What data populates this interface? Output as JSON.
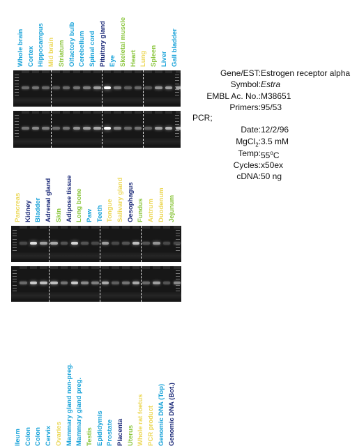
{
  "panels": [
    {
      "labels": [
        {
          "text": "Whole brain",
          "color": "#1aa3d9"
        },
        {
          "text": "Cortex",
          "color": "#1aa3d9"
        },
        {
          "text": "Hippocampus",
          "color": "#1aa3d9"
        },
        {
          "text": "Mid brain",
          "color": "#ecd85a"
        },
        {
          "text": "Striatum",
          "color": "#8cc63f"
        },
        {
          "text": "Olfactory bulb",
          "color": "#1aa3d9"
        },
        {
          "text": "Cerebellum",
          "color": "#1aa3d9"
        },
        {
          "text": "Spinal cord",
          "color": "#1aa3d9"
        },
        {
          "text": "Pituitary gland",
          "color": "#1c2a78"
        },
        {
          "text": "Eye",
          "color": "#1aa3d9"
        },
        {
          "text": "Skeletal muscle",
          "color": "#8cc63f"
        },
        {
          "text": "Heart",
          "color": "#8cc63f"
        },
        {
          "text": "Lung",
          "color": "#ecd85a"
        },
        {
          "text": "Spleen",
          "color": "#8cc63f"
        },
        {
          "text": "Liver",
          "color": "#1aa3d9"
        },
        {
          "text": "Gall bladder",
          "color": "#1aa3d9"
        }
      ],
      "gels": [
        {
          "bands": [
            0.3,
            0.35,
            0.3,
            0.25,
            0.3,
            0.35,
            0.4,
            0.55,
            1.0,
            0.4,
            0.25,
            0.3,
            0.2,
            0.5,
            0.55,
            0.6
          ]
        },
        {
          "bands": [
            0.35,
            0.45,
            0.4,
            0.3,
            0.35,
            0.5,
            0.55,
            0.6,
            1.0,
            0.45,
            0.3,
            0.35,
            0.25,
            0.55,
            0.65,
            0.7
          ]
        }
      ]
    },
    {
      "labels": [
        {
          "text": "Pancreas",
          "color": "#ecd85a"
        },
        {
          "text": "Kidney",
          "color": "#1c2a78"
        },
        {
          "text": "Bladder",
          "color": "#1aa3d9"
        },
        {
          "text": "Adrenal gland",
          "color": "#1c2a78"
        },
        {
          "text": "Skin",
          "color": "#8cc63f"
        },
        {
          "text": "Adipose tissue",
          "color": "#1c2a78"
        },
        {
          "text": "Long bone",
          "color": "#8cc63f"
        },
        {
          "text": "Paw",
          "color": "#1aa3d9"
        },
        {
          "text": "Teeth",
          "color": "#1aa3d9"
        },
        {
          "text": "Tongue",
          "color": "#ecd85a"
        },
        {
          "text": "Salivary gland",
          "color": "#ecd85a"
        },
        {
          "text": "Oesophagus",
          "color": "#1c2a78"
        },
        {
          "text": "Fundus",
          "color": "#8cc63f"
        },
        {
          "text": "Antrum",
          "color": "#ecd85a"
        },
        {
          "text": "Duodenum",
          "color": "#ecd85a"
        },
        {
          "text": "Jejunum",
          "color": "#8cc63f"
        }
      ],
      "gels": [
        {
          "bands": [
            0.15,
            0.85,
            0.55,
            0.6,
            0.2,
            0.8,
            0.2,
            0.15,
            0.55,
            0.15,
            0.2,
            0.7,
            0.2,
            0.5,
            0.15,
            0.15
          ]
        },
        {
          "bands": [
            0.3,
            0.75,
            0.7,
            0.7,
            0.35,
            0.75,
            0.45,
            0.4,
            0.6,
            0.25,
            0.35,
            0.6,
            0.3,
            0.55,
            0.2,
            0.45
          ]
        }
      ]
    },
    {
      "labels": [
        {
          "text": "Ileum",
          "color": "#1aa3d9"
        },
        {
          "text": "Colon",
          "color": "#1aa3d9"
        },
        {
          "text": "Colon",
          "color": "#1aa3d9"
        },
        {
          "text": "Cervix",
          "color": "#1aa3d9"
        },
        {
          "text": "Ovaries",
          "color": "#ecd85a"
        },
        {
          "text": "Mammary gland non-preg.",
          "color": "#1aa3d9"
        },
        {
          "text": "Mammary gland preg.",
          "color": "#1aa3d9"
        },
        {
          "text": "Testis",
          "color": "#8cc63f"
        },
        {
          "text": "Epididymis",
          "color": "#1aa3d9"
        },
        {
          "text": "Prostate",
          "color": "#1aa3d9"
        },
        {
          "text": "Placenta",
          "color": "#1c2a78"
        },
        {
          "text": "Uterus",
          "color": "#8cc63f"
        },
        {
          "text": "Whole rat foetus",
          "color": "#ecd85a"
        },
        {
          "text": "PCR product",
          "color": "#ecd85a"
        },
        {
          "text": "Genomic DNA (Top)",
          "color": "#1aa3d9"
        },
        {
          "text": "Genomic DNA (Bot.)",
          "color": "#1c2a78"
        }
      ],
      "gels": []
    }
  ],
  "info": {
    "rows": [
      {
        "key": "Gene/EST:",
        "value": "Estrogen receptor alpha"
      },
      {
        "key": "Symbol:",
        "value": "Estra"
      },
      {
        "key": "EMBL Ac. No.:",
        "value": "M38651"
      },
      {
        "key": "Primers:",
        "value": "95/53"
      }
    ],
    "pcr_label": "PCR;",
    "pcr_rows": [
      {
        "key": "Date:",
        "value": "12/2/96"
      },
      {
        "key": "MgCl2:",
        "value": "3.5 mM"
      },
      {
        "key": "Temp:",
        "value": "55oC"
      },
      {
        "key": "Cycles:",
        "value": "x50ex"
      },
      {
        "key": "cDNA:",
        "value": "50 ng"
      }
    ]
  }
}
